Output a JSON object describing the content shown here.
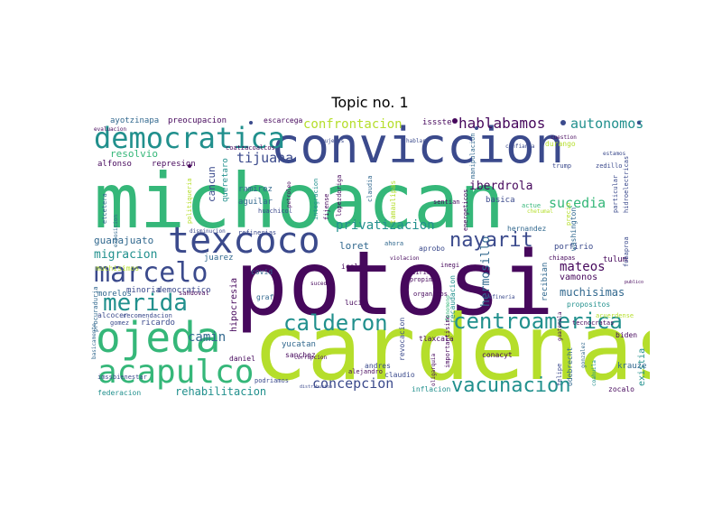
{
  "title": "Topic no. 1",
  "colors": {
    "dark_purple": "#46085c",
    "indigo": "#3b4a8c",
    "blue": "#31688e",
    "teal": "#21908d",
    "green": "#35b779",
    "lime": "#b5de2b"
  },
  "words": [
    "potosi",
    "cardenas",
    "michoacan",
    "conviccion",
    "texcoco",
    "ojeda",
    "democratica",
    "marcelo",
    "acapulco",
    "merida",
    "centroamerica",
    "calderon",
    "vacunacion",
    "nayarit",
    "hablabamos",
    "autonomos",
    "privatizacion",
    "concepcion",
    "confrontacion",
    "tijuana",
    "sucedia",
    "mateos",
    "hermosillo",
    "iberdrola",
    "rehabilitacion",
    "migracion",
    "guanajuato",
    "camin",
    "muchisimas",
    "ayotzinapa",
    "preocupacion",
    "escarcega",
    "issste",
    "resolvio",
    "represion",
    "alfonso",
    "cancun",
    "queretaro",
    "ramirez",
    "aguilar",
    "huachicol",
    "juarez",
    "muchisimos",
    "minoria",
    "democratico",
    "morelos",
    "ricardo",
    "alcocer",
    "gomez",
    "imssbienestar",
    "federacion",
    "hipocresia",
    "sandoval",
    "covid",
    "graf",
    "yucatan",
    "sanchez",
    "daniel",
    "podriamos",
    "loret",
    "ahora",
    "aprobo",
    "icela",
    "lucia",
    "sucedio",
    "revocacion",
    "tlaxcala",
    "alejandro",
    "claudio",
    "inflacion",
    "andres",
    "conacyt",
    "recaudacion",
    "recibian",
    "hernandez",
    "porfirio",
    "tulum",
    "vamonos",
    "propositos",
    "biden",
    "existia",
    "krauze",
    "felipe",
    "odebrecht",
    "zocalo",
    "washington",
    "precio",
    "sentian",
    "basica",
    "energeticos",
    "claudia",
    "tamaulipas",
    "lopezdoriga",
    "fijense",
    "integracion",
    "durango",
    "trump",
    "zedillo",
    "particular",
    "hidroelectricas",
    "evaluacion",
    "coatzacoalcos",
    "procuraduria",
    "etcetera",
    "politiqueria",
    "refinerias",
    "disminucion",
    "actue",
    "chiapas",
    "inegi",
    "diria",
    "organicos",
    "guatemala",
    "gonzalez",
    "tecnocratas",
    "chetumal",
    "fobaproa",
    "importantisimo",
    "oligarquia",
    "recomendacion",
    "basicamente",
    "exposicion",
    "corrupcion",
    "manipulacion",
    "cuestion",
    "fenomeno",
    "propimo",
    "violacion",
    "acuerdense",
    "publico",
    "coahuila",
    "petroleo",
    "mujeres",
    "hablar",
    "confianza",
    "refineria",
    "distribucion",
    "estamos"
  ]
}
